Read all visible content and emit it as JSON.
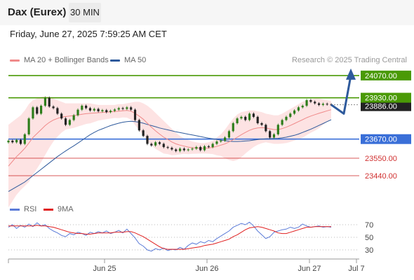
{
  "header": {
    "title": "Dax (Eurex)",
    "interval": "30 MIN",
    "timestamp": "Friday, June 27, 2025 7:59:25 AM CET",
    "credit": "Research © 2025 Trading Central"
  },
  "colors": {
    "ma20": "#f08a8a",
    "ma50": "#2e5a9c",
    "resistance": "#4a9a06",
    "pivot": "#3a6fd8",
    "support": "#d03030",
    "bollinger_fill": "#fde3e3",
    "candle_up": "#2d7d1a",
    "candle_down": "#222222",
    "current_price": "#222222",
    "rsi_line": "#5b7bd8",
    "rsi_ma": "#e02020",
    "forecast_arrow": "#2e5a9c"
  },
  "chart_data": [
    {
      "type": "line",
      "name": "price-chart",
      "legend": [
        {
          "label": "MA 20 + Bollinger Bands",
          "color": "#f08a8a"
        },
        {
          "label": "MA 50",
          "color": "#2e5a9c"
        }
      ],
      "x_ticks": [
        "Jun 25",
        "Jun 26",
        "Jun 27",
        "Jul 7"
      ],
      "levels": [
        {
          "label": "24070.00",
          "value": 24070,
          "kind": "resistance"
        },
        {
          "label": "23930.00",
          "value": 23930,
          "kind": "resistance"
        },
        {
          "label": "23670.00",
          "value": 23670,
          "kind": "pivot"
        },
        {
          "label": "23550.00",
          "value": 23550,
          "kind": "support"
        },
        {
          "label": "23440.00",
          "value": 23440,
          "kind": "support"
        }
      ],
      "current_price": {
        "label": "23886.00",
        "value": 23886
      },
      "ylim": [
        23290,
        24140
      ],
      "close": [
        23660,
        23650,
        23665,
        23640,
        23700,
        23800,
        23870,
        23830,
        23880,
        23930,
        23875,
        23865,
        23830,
        23800,
        23760,
        23790,
        23820,
        23855,
        23880,
        23865,
        23850,
        23860,
        23845,
        23852,
        23840,
        23848,
        23856,
        23865,
        23860,
        23870,
        23855,
        23790,
        23725,
        23690,
        23640,
        23630,
        23650,
        23640,
        23620,
        23615,
        23605,
        23595,
        23610,
        23600,
        23605,
        23610,
        23620,
        23600,
        23625,
        23620,
        23640,
        23655,
        23660,
        23680,
        23720,
        23770,
        23800,
        23810,
        23790,
        23830,
        23810,
        23770,
        23760,
        23720,
        23680,
        23700,
        23760,
        23790,
        23810,
        23830,
        23850,
        23870,
        23880,
        23915,
        23905,
        23895,
        23885,
        23892,
        23888,
        23886
      ],
      "ma20": [
        23500,
        23530,
        23560,
        23585,
        23612,
        23645,
        23680,
        23705,
        23730,
        23755,
        23775,
        23790,
        23800,
        23808,
        23812,
        23815,
        23818,
        23822,
        23826,
        23830,
        23832,
        23834,
        23836,
        23838,
        23840,
        23842,
        23844,
        23846,
        23848,
        23850,
        23846,
        23832,
        23815,
        23795,
        23770,
        23745,
        23722,
        23702,
        23682,
        23668,
        23652,
        23640,
        23632,
        23626,
        23620,
        23616,
        23614,
        23612,
        23612,
        23614,
        23618,
        23624,
        23632,
        23640,
        23652,
        23666,
        23682,
        23698,
        23712,
        23725,
        23735,
        23740,
        23742,
        23740,
        23735,
        23730,
        23730,
        23736,
        23745,
        23756,
        23768,
        23780,
        23792,
        23805,
        23815,
        23824,
        23832,
        23840,
        23848,
        23855
      ],
      "bb_upper": [
        23760,
        23780,
        23800,
        23820,
        23850,
        23890,
        23915,
        23925,
        23935,
        23940,
        23935,
        23925,
        23915,
        23905,
        23895,
        23895,
        23895,
        23895,
        23895,
        23895,
        23895,
        23890,
        23885,
        23885,
        23885,
        23885,
        23885,
        23890,
        23890,
        23895,
        23900,
        23905,
        23905,
        23895,
        23880,
        23860,
        23835,
        23810,
        23785,
        23760,
        23735,
        23710,
        23690,
        23675,
        23665,
        23655,
        23650,
        23645,
        23645,
        23650,
        23660,
        23680,
        23700,
        23730,
        23765,
        23800,
        23825,
        23840,
        23845,
        23850,
        23850,
        23845,
        23840,
        23830,
        23825,
        23820,
        23820,
        23830,
        23845,
        23860,
        23875,
        23890,
        23905,
        23915,
        23920,
        23925,
        23925,
        23920,
        23915,
        23910
      ],
      "bb_lower": [
        23240,
        23280,
        23320,
        23350,
        23375,
        23400,
        23445,
        23485,
        23525,
        23570,
        23615,
        23655,
        23685,
        23711,
        23729,
        23735,
        23741,
        23749,
        23757,
        23765,
        23769,
        23778,
        23787,
        23791,
        23795,
        23799,
        23803,
        23802,
        23806,
        23805,
        23792,
        23759,
        23725,
        23695,
        23660,
        23630,
        23609,
        23594,
        23579,
        23576,
        23569,
        23570,
        23574,
        23577,
        23575,
        23577,
        23578,
        23579,
        23579,
        23578,
        23576,
        23568,
        23564,
        23550,
        23539,
        23532,
        23539,
        23556,
        23579,
        23600,
        23620,
        23635,
        23644,
        23650,
        23645,
        23640,
        23640,
        23642,
        23645,
        23652,
        23661,
        23670,
        23679,
        23695,
        23710,
        23723,
        23739,
        23760,
        23781,
        23800
      ],
      "ma50": [
        23340,
        23355,
        23370,
        23385,
        23400,
        23420,
        23440,
        23460,
        23480,
        23500,
        23520,
        23540,
        23560,
        23578,
        23595,
        23612,
        23628,
        23645,
        23662,
        23680,
        23698,
        23712,
        23725,
        23735,
        23745,
        23755,
        23763,
        23770,
        23776,
        23780,
        23782,
        23780,
        23776,
        23770,
        23762,
        23755,
        23748,
        23740,
        23734,
        23728,
        23722,
        23716,
        23711,
        23706,
        23701,
        23696,
        23691,
        23686,
        23681,
        23676,
        23672,
        23668,
        23664,
        23660,
        23657,
        23655,
        23655,
        23656,
        23658,
        23660,
        23664,
        23667,
        23670,
        23672,
        23673,
        23674,
        23675,
        23678,
        23682,
        23688,
        23694,
        23702,
        23712,
        23722,
        23732,
        23744,
        23756,
        23768,
        23780,
        23792
      ],
      "forecast": [
        23886,
        23830,
        24070
      ]
    },
    {
      "type": "line",
      "name": "rsi-chart",
      "legend": [
        {
          "label": "RSI",
          "color": "#5b7bd8"
        },
        {
          "label": "9MA",
          "color": "#e02020"
        }
      ],
      "y_ticks": [
        70,
        50,
        30
      ],
      "ylim": [
        20,
        80
      ],
      "rsi": [
        66,
        70,
        64,
        69,
        66,
        71,
        67,
        73,
        68,
        70,
        64,
        60,
        57,
        53,
        51,
        56,
        54,
        58,
        56,
        53,
        58,
        56,
        59,
        57,
        60,
        56,
        58,
        61,
        57,
        63,
        56,
        49,
        40,
        36,
        30,
        28,
        32,
        30,
        33,
        29,
        31,
        30,
        34,
        31,
        37,
        41,
        39,
        43,
        41,
        45,
        43,
        48,
        52,
        56,
        60,
        66,
        69,
        72,
        70,
        74,
        68,
        60,
        54,
        48,
        51,
        58,
        60,
        62,
        63,
        66,
        64,
        66,
        71,
        68,
        66,
        67,
        68,
        66,
        67,
        66
      ],
      "rsi_ma": [
        68,
        68,
        68,
        68,
        68,
        68,
        68,
        69,
        68,
        68,
        67,
        66,
        64,
        62,
        60,
        58,
        57,
        56,
        56,
        55,
        55,
        56,
        57,
        57,
        57,
        57,
        58,
        58,
        58,
        59,
        59,
        57,
        54,
        51,
        47,
        43,
        39,
        35,
        32,
        31,
        31,
        31,
        31,
        31,
        32,
        33,
        34,
        35,
        37,
        38,
        39,
        41,
        43,
        45,
        47,
        51,
        54,
        58,
        62,
        65,
        66,
        67,
        66,
        64,
        62,
        60,
        57,
        56,
        56,
        58,
        60,
        62,
        64,
        66,
        66,
        67,
        67,
        67,
        67,
        67
      ]
    }
  ]
}
